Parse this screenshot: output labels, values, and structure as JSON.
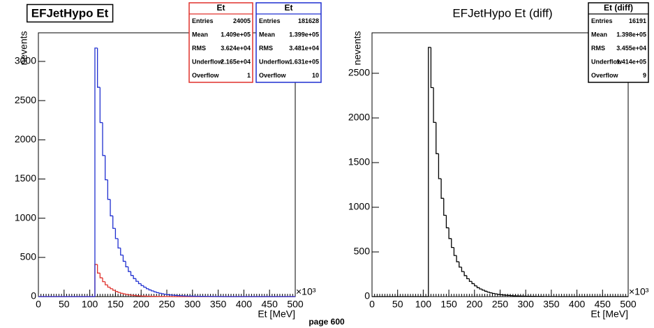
{
  "page_label": "page 600",
  "chart_data": [
    {
      "type": "histogram",
      "title": "EFJetHypo Et",
      "title_boxed": true,
      "xlabel": "Et [MeV]",
      "ylabel": "nevents",
      "x_multiplier": "×10³",
      "xlim": [
        0,
        500
      ],
      "xticks": [
        0,
        50,
        100,
        150,
        200,
        250,
        300,
        350,
        400,
        450,
        500
      ],
      "ylim": [
        0,
        3365
      ],
      "yticks": [
        0,
        500,
        1000,
        1500,
        2000,
        2500,
        3000
      ],
      "bins": [
        0,
        5,
        10,
        15,
        20,
        25,
        30,
        35,
        40,
        45,
        50,
        55,
        60,
        65,
        70,
        75,
        80,
        85,
        90,
        95,
        100,
        105,
        110,
        115,
        120,
        125,
        130,
        135,
        140,
        145,
        150,
        155,
        160,
        165,
        170,
        175,
        180,
        185,
        190,
        195,
        200,
        205,
        210,
        215,
        220,
        225,
        230,
        235,
        240,
        245,
        250,
        255,
        260,
        265,
        270,
        275,
        280,
        285,
        290,
        295,
        300,
        305,
        310,
        315,
        320,
        325,
        330,
        335,
        340,
        345,
        350,
        355,
        360,
        365,
        370,
        375,
        380,
        385,
        390,
        395,
        400,
        405,
        410,
        415,
        420,
        425,
        430,
        435,
        440,
        445,
        450,
        455,
        460,
        465,
        470,
        475,
        480,
        485,
        490,
        495,
        500
      ],
      "series": [
        {
          "name": "Et",
          "color": "#e0312b",
          "stats": [
            {
              "label": "Entries",
              "value": "24005"
            },
            {
              "label": "Mean",
              "value": "1.409e+05"
            },
            {
              "label": "RMS",
              "value": "3.624e+04"
            },
            {
              "label": "Underflow",
              "value": "2.165e+04"
            },
            {
              "label": "Overflow",
              "value": "1"
            }
          ],
          "values": [
            0,
            0,
            0,
            0,
            0,
            0,
            0,
            0,
            0,
            0,
            0,
            0,
            0,
            0,
            0,
            0,
            0,
            0,
            0,
            0,
            0,
            0,
            410,
            300,
            240,
            190,
            150,
            120,
            100,
            80,
            65,
            52,
            42,
            34,
            28,
            22,
            18,
            14,
            11,
            9,
            7,
            6,
            5,
            4,
            3,
            3,
            2,
            2,
            2,
            1,
            1,
            1,
            0,
            0,
            0,
            0,
            0,
            0,
            0,
            0,
            0,
            0,
            0,
            0,
            0,
            0,
            0,
            0,
            0,
            0,
            0,
            0,
            0,
            0,
            0,
            0,
            0,
            0,
            0,
            0,
            0,
            0,
            0,
            0,
            0,
            0,
            0,
            0,
            0,
            0,
            0,
            0,
            0,
            0,
            0,
            0,
            0,
            0,
            0,
            0,
            0,
            0
          ]
        },
        {
          "name": "Et",
          "color": "#1f2fd0",
          "stats": [
            {
              "label": "Entries",
              "value": "181628"
            },
            {
              "label": "Mean",
              "value": "1.399e+05"
            },
            {
              "label": "RMS",
              "value": "3.481e+04"
            },
            {
              "label": "Underflow",
              "value": "1.631e+05"
            },
            {
              "label": "Overflow",
              "value": "10"
            }
          ],
          "values": [
            0,
            0,
            0,
            0,
            0,
            0,
            0,
            0,
            0,
            0,
            0,
            0,
            0,
            0,
            0,
            0,
            0,
            0,
            0,
            0,
            0,
            0,
            3170,
            2670,
            2220,
            1800,
            1490,
            1240,
            1030,
            870,
            740,
            620,
            530,
            450,
            380,
            320,
            270,
            230,
            195,
            165,
            140,
            120,
            100,
            85,
            72,
            60,
            50,
            42,
            35,
            30,
            25,
            21,
            18,
            15,
            13,
            11,
            9,
            8,
            7,
            6,
            5,
            4,
            4,
            3,
            3,
            2,
            2,
            2,
            1,
            1,
            1,
            1,
            0,
            0,
            0,
            0,
            0,
            0,
            0,
            0,
            0,
            0,
            0,
            0,
            0,
            0,
            0,
            0,
            0,
            0,
            0,
            0,
            0,
            0,
            0,
            0,
            0,
            0,
            0,
            0
          ]
        }
      ]
    },
    {
      "type": "histogram",
      "title": "EFJetHypo Et (diff)",
      "title_boxed": false,
      "xlabel": "Et [MeV]",
      "ylabel": "nevents",
      "x_multiplier": "×10³",
      "xlim": [
        0,
        500
      ],
      "xticks": [
        0,
        50,
        100,
        150,
        200,
        250,
        300,
        350,
        400,
        450,
        500
      ],
      "ylim": [
        0,
        2953
      ],
      "yticks": [
        0,
        500,
        1000,
        1500,
        2000,
        2500
      ],
      "bins": [
        0,
        5,
        10,
        15,
        20,
        25,
        30,
        35,
        40,
        45,
        50,
        55,
        60,
        65,
        70,
        75,
        80,
        85,
        90,
        95,
        100,
        105,
        110,
        115,
        120,
        125,
        130,
        135,
        140,
        145,
        150,
        155,
        160,
        165,
        170,
        175,
        180,
        185,
        190,
        195,
        200,
        205,
        210,
        215,
        220,
        225,
        230,
        235,
        240,
        245,
        250,
        255,
        260,
        265,
        270,
        275,
        280,
        285,
        290,
        295,
        300,
        305,
        310,
        315,
        320,
        325,
        330,
        335,
        340,
        345,
        350,
        355,
        360,
        365,
        370,
        375,
        380,
        385,
        390,
        395,
        400,
        405,
        410,
        415,
        420,
        425,
        430,
        435,
        440,
        445,
        450,
        455,
        460,
        465,
        470,
        475,
        480,
        485,
        490,
        495,
        500
      ],
      "series": [
        {
          "name": "Et (diff)",
          "color": "#000000",
          "stats": [
            {
              "label": "Entries",
              "value": "16191"
            },
            {
              "label": "Mean",
              "value": "1.398e+05"
            },
            {
              "label": "RMS",
              "value": "3.455e+04"
            },
            {
              "label": "Underflow",
              "value": "1.414e+05"
            },
            {
              "label": "Overflow",
              "value": "9"
            }
          ],
          "values": [
            0,
            0,
            0,
            0,
            0,
            0,
            0,
            0,
            0,
            0,
            0,
            0,
            0,
            0,
            0,
            0,
            0,
            0,
            0,
            0,
            0,
            0,
            2790,
            2340,
            1950,
            1600,
            1320,
            1100,
            910,
            770,
            650,
            550,
            460,
            390,
            330,
            280,
            235,
            200,
            170,
            145,
            120,
            100,
            85,
            72,
            60,
            50,
            42,
            35,
            30,
            25,
            21,
            18,
            15,
            13,
            11,
            9,
            8,
            7,
            6,
            5,
            4,
            4,
            3,
            3,
            2,
            2,
            2,
            1,
            1,
            1,
            1,
            1,
            0,
            0,
            0,
            0,
            0,
            0,
            0,
            0,
            0,
            0,
            0,
            0,
            0,
            0,
            0,
            0,
            0,
            0,
            0,
            0,
            0,
            0,
            0,
            0,
            0,
            0,
            0,
            0
          ]
        }
      ]
    }
  ]
}
